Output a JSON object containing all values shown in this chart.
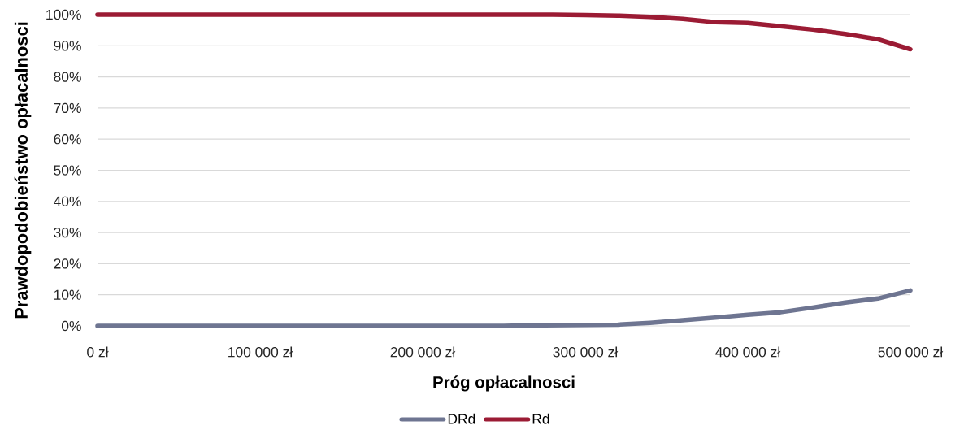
{
  "chart_data": {
    "type": "line",
    "xlabel": "Próg opłacalnosci",
    "ylabel": "Prawdopodobieństwo opłacalnosci",
    "x": [
      0,
      50000,
      100000,
      150000,
      200000,
      250000,
      260000,
      280000,
      300000,
      320000,
      340000,
      360000,
      380000,
      400000,
      420000,
      440000,
      460000,
      480000,
      500000
    ],
    "series": [
      {
        "name": "DRd",
        "color": "#6e7591",
        "values": [
          0,
          0,
          0,
          0,
          0,
          0,
          0.1,
          0.2,
          0.3,
          0.4,
          1.0,
          1.8,
          2.7,
          3.6,
          4.4,
          5.9,
          7.5,
          8.8,
          11.4
        ]
      },
      {
        "name": "Rd",
        "color": "#9b1b34",
        "values": [
          100,
          100,
          100,
          100,
          100,
          100,
          100,
          100,
          99.9,
          99.7,
          99.3,
          98.6,
          97.6,
          97.3,
          96.3,
          95.2,
          93.8,
          92.1,
          88.9
        ]
      }
    ],
    "xlim": [
      0,
      500000
    ],
    "ylim": [
      0,
      100
    ],
    "xticks": [
      {
        "value": 0,
        "label": "0 zł"
      },
      {
        "value": 100000,
        "label": "100 000 zł"
      },
      {
        "value": 200000,
        "label": "200 000 zł"
      },
      {
        "value": 300000,
        "label": "300 000 zł"
      },
      {
        "value": 400000,
        "label": "400 000 zł"
      },
      {
        "value": 500000,
        "label": "500 000 zł"
      }
    ],
    "yticks": [
      {
        "value": 0,
        "label": "0%"
      },
      {
        "value": 10,
        "label": "10%"
      },
      {
        "value": 20,
        "label": "20%"
      },
      {
        "value": 30,
        "label": "30%"
      },
      {
        "value": 40,
        "label": "40%"
      },
      {
        "value": 50,
        "label": "50%"
      },
      {
        "value": 60,
        "label": "60%"
      },
      {
        "value": 70,
        "label": "70%"
      },
      {
        "value": 80,
        "label": "80%"
      },
      {
        "value": 90,
        "label": "90%"
      },
      {
        "value": 100,
        "label": "100%"
      }
    ],
    "grid": "y",
    "legend": "bottom",
    "line_style": "solid"
  }
}
